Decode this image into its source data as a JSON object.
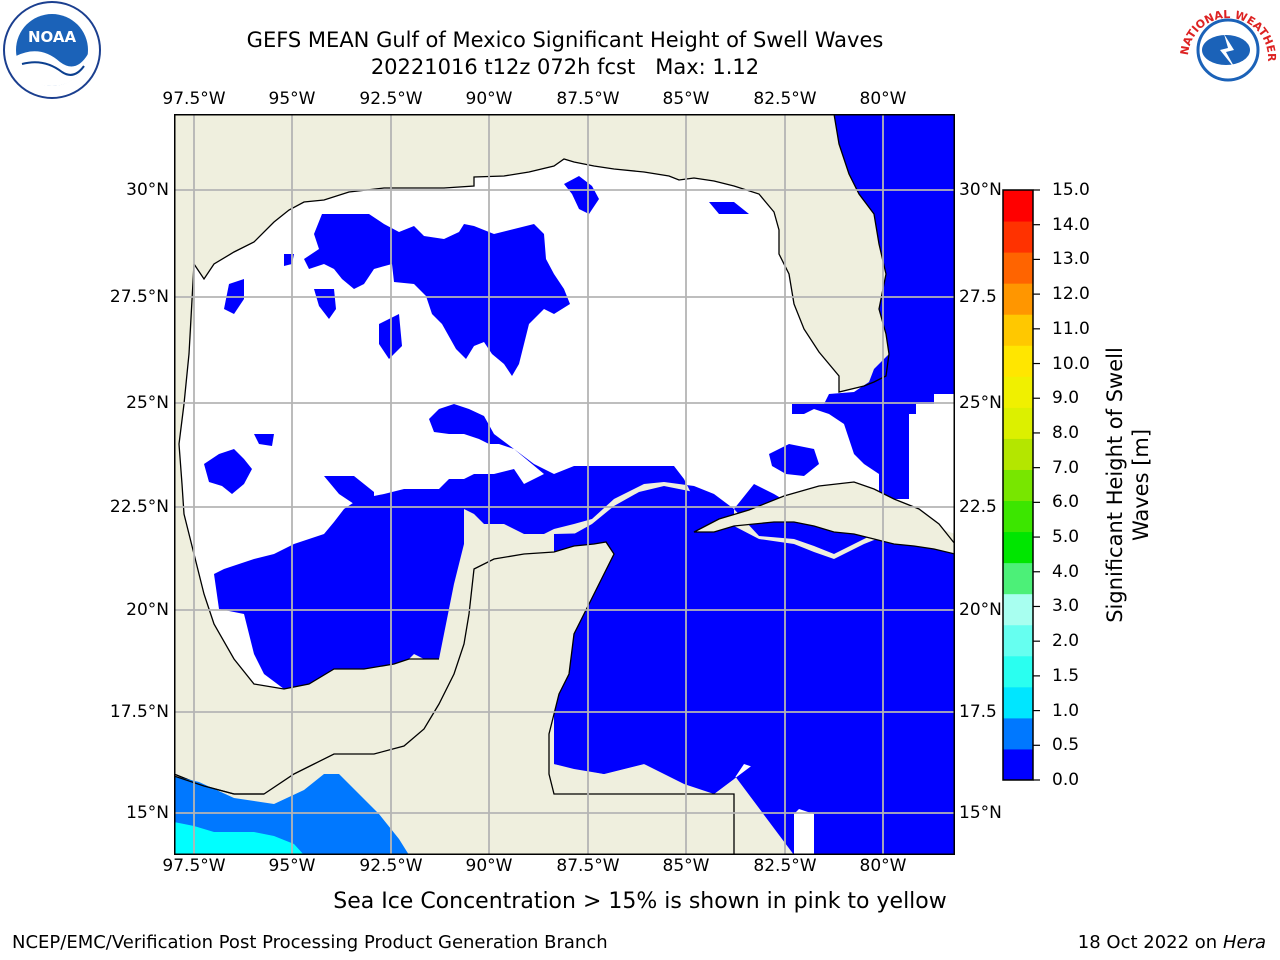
{
  "title_line1": "GEFS MEAN Gulf of Mexico Significant Height of Swell Waves",
  "title_line2": "20221016 t12z 072h fcst   Max: 1.12",
  "lon_labels": [
    "97.5°W",
    "95°W",
    "92.5°W",
    "90°W",
    "87.5°W",
    "85°W",
    "82.5°W",
    "80°W"
  ],
  "lat_labels": [
    "30°N",
    "27.5°N",
    "25°N",
    "22.5°N",
    "20°N",
    "17.5°N",
    "15°N"
  ],
  "lat_labels_right": [
    "30°N",
    "27.5",
    "25°N",
    "22.5",
    "20°N",
    "17.5",
    "15°N"
  ],
  "colorbar": {
    "label_line1": "Significant Height of Swell",
    "label_line2": "Waves [m]",
    "ticks": [
      "15.0",
      "14.0",
      "13.0",
      "12.0",
      "11.0",
      "10.0",
      "9.0",
      "8.0",
      "7.0",
      "6.0",
      "5.0",
      "4.0",
      "3.0",
      "2.0",
      "1.5",
      "1.0",
      "0.5",
      "0.0"
    ],
    "colors": [
      "#0000ff",
      "#0078ff",
      "#00e6ff",
      "#2afff0",
      "#66fff0",
      "#a8fff0",
      "#4cf078",
      "#00e600",
      "#3ce600",
      "#78e600",
      "#b4e600",
      "#dcf000",
      "#f0f000",
      "#ffe600",
      "#ffc800",
      "#ff9600",
      "#ff6400",
      "#ff3200",
      "#ff0000"
    ]
  },
  "colors": {
    "land": "#efefde",
    "water_low": "#0000ff",
    "water_mid": "#0078ff",
    "water_cyan": "#00ffff",
    "gridline": "#b4b4b4"
  },
  "note": "Sea Ice Concentration > 15% is shown in pink to yellow",
  "footer_left": "NCEP/EMC/Verification Post Processing Product Generation Branch",
  "footer_date": "18 Oct 2022 on",
  "footer_host": "Hera",
  "logos": {
    "noaa_text": "NOAA",
    "nws_text": "NATIONAL WEATHER SERVICE"
  }
}
